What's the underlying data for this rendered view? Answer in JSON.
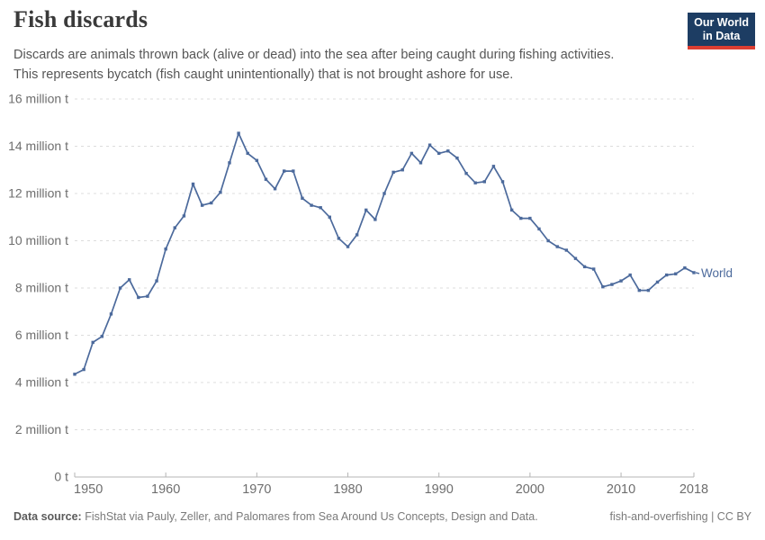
{
  "header": {
    "title": "Fish discards",
    "subtitle_lines": [
      "Discards are animals thrown back (alive or dead) into the sea after being caught during fishing activities.",
      "This represents bycatch (fish caught unintentionally) that is not brought ashore for use."
    ],
    "logo_line1": "Our World",
    "logo_line2": "in Data"
  },
  "chart_data": {
    "type": "line",
    "title": "Fish discards",
    "unit": "million t",
    "grid": "dashed horizontal gridlines, no vertical gridlines",
    "legend_position": "end-of-line label",
    "end_label": "World",
    "xlim": [
      1950,
      2018
    ],
    "ylim": [
      0,
      16
    ],
    "x_ticks": [
      1950,
      1960,
      1970,
      1980,
      1990,
      2000,
      2010,
      2018
    ],
    "y_ticks": [
      {
        "value": 0,
        "label": "0 t"
      },
      {
        "value": 2,
        "label": "2 million t"
      },
      {
        "value": 4,
        "label": "4 million t"
      },
      {
        "value": 6,
        "label": "6 million t"
      },
      {
        "value": 8,
        "label": "8 million t"
      },
      {
        "value": 10,
        "label": "10 million t"
      },
      {
        "value": 12,
        "label": "12 million t"
      },
      {
        "value": 14,
        "label": "14 million t"
      },
      {
        "value": 16,
        "label": "16 million t"
      }
    ],
    "series": [
      {
        "name": "World",
        "color": "#4c6a9c",
        "x": [
          1950,
          1951,
          1952,
          1953,
          1954,
          1955,
          1956,
          1957,
          1958,
          1959,
          1960,
          1961,
          1962,
          1963,
          1964,
          1965,
          1966,
          1967,
          1968,
          1969,
          1970,
          1971,
          1972,
          1973,
          1974,
          1975,
          1976,
          1977,
          1978,
          1979,
          1980,
          1981,
          1982,
          1983,
          1984,
          1985,
          1986,
          1987,
          1988,
          1989,
          1990,
          1991,
          1992,
          1993,
          1994,
          1995,
          1996,
          1997,
          1998,
          1999,
          2000,
          2001,
          2002,
          2003,
          2004,
          2005,
          2006,
          2007,
          2008,
          2009,
          2010,
          2011,
          2012,
          2013,
          2014,
          2015,
          2016,
          2017,
          2018
        ],
        "values": [
          4.35,
          4.55,
          5.7,
          5.95,
          6.9,
          8.0,
          8.35,
          7.6,
          7.65,
          8.3,
          9.65,
          10.55,
          11.05,
          12.4,
          11.5,
          11.6,
          12.05,
          13.3,
          14.55,
          13.7,
          13.4,
          12.6,
          12.2,
          12.95,
          12.95,
          11.8,
          11.5,
          11.4,
          11.0,
          10.1,
          9.75,
          10.25,
          11.3,
          10.9,
          12.0,
          12.9,
          13.0,
          13.7,
          13.3,
          14.05,
          13.7,
          13.8,
          13.5,
          12.85,
          12.45,
          12.5,
          13.15,
          12.5,
          11.3,
          10.95,
          10.95,
          10.5,
          10.0,
          9.75,
          9.6,
          9.25,
          8.9,
          8.8,
          8.05,
          8.15,
          8.3,
          8.55,
          7.9,
          7.9,
          8.25,
          8.55,
          8.6,
          8.85,
          8.65
        ]
      }
    ]
  },
  "footer": {
    "source_label": "Data source:",
    "source_text": " FishStat via Pauly, Zeller, and Palomares from Sea Around Us Concepts, Design and Data.",
    "right_text": "fish-and-overfishing | CC BY"
  },
  "colors": {
    "line": "#4c6a9c",
    "end_label": "#4c6a9c",
    "gridline": "#dcdcdc",
    "axis": "#b5b5b5",
    "tick_label": "#6e6e6e",
    "logo_bg": "#1d3d63",
    "logo_accent": "#dc3e32"
  }
}
